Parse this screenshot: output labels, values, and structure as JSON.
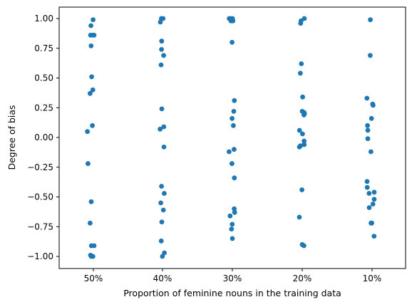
{
  "chart_data": {
    "type": "scatter",
    "xlabel": "Proportion of feminine nouns in the training data",
    "ylabel": "Degree of bias",
    "categories": [
      "50%",
      "40%",
      "30%",
      "20%",
      "10%"
    ],
    "yticks": [
      "1.00",
      "0.75",
      "0.50",
      "0.25",
      "0.00",
      "−0.25",
      "−0.50",
      "−0.75",
      "−1.00"
    ],
    "ylim": [
      -1.1,
      1.1
    ],
    "grid": false,
    "point_color": "#1f77b4",
    "points": [
      {
        "category": "50%",
        "jitter": -0.02,
        "y": 0.99
      },
      {
        "category": "50%",
        "jitter": -0.17,
        "y": 0.94
      },
      {
        "category": "50%",
        "jitter": -0.2,
        "y": 0.86
      },
      {
        "category": "50%",
        "jitter": -0.05,
        "y": 0.86
      },
      {
        "category": "50%",
        "jitter": 0.05,
        "y": 0.86
      },
      {
        "category": "50%",
        "jitter": -0.16,
        "y": 0.77
      },
      {
        "category": "50%",
        "jitter": -0.12,
        "y": 0.51
      },
      {
        "category": "50%",
        "jitter": -0.04,
        "y": 0.4
      },
      {
        "category": "50%",
        "jitter": -0.23,
        "y": 0.37
      },
      {
        "category": "50%",
        "jitter": -0.07,
        "y": 0.1
      },
      {
        "category": "50%",
        "jitter": -0.42,
        "y": 0.05
      },
      {
        "category": "50%",
        "jitter": -0.38,
        "y": -0.22
      },
      {
        "category": "50%",
        "jitter": -0.15,
        "y": -0.54
      },
      {
        "category": "50%",
        "jitter": -0.23,
        "y": -0.72
      },
      {
        "category": "50%",
        "jitter": -0.14,
        "y": -0.91
      },
      {
        "category": "50%",
        "jitter": 0.05,
        "y": -0.91
      },
      {
        "category": "50%",
        "jitter": -0.2,
        "y": -0.99
      },
      {
        "category": "50%",
        "jitter": -0.14,
        "y": -1.0
      },
      {
        "category": "50%",
        "jitter": -0.03,
        "y": -1.0
      },
      {
        "category": "40%",
        "jitter": 0.04,
        "y": 1.0
      },
      {
        "category": "40%",
        "jitter": -0.08,
        "y": 1.0
      },
      {
        "category": "40%",
        "jitter": -0.15,
        "y": 0.97
      },
      {
        "category": "40%",
        "jitter": -0.06,
        "y": 0.81
      },
      {
        "category": "40%",
        "jitter": -0.07,
        "y": 0.74
      },
      {
        "category": "40%",
        "jitter": 0.08,
        "y": 0.69
      },
      {
        "category": "40%",
        "jitter": -0.1,
        "y": 0.61
      },
      {
        "category": "40%",
        "jitter": -0.05,
        "y": 0.24
      },
      {
        "category": "40%",
        "jitter": 0.09,
        "y": 0.09
      },
      {
        "category": "40%",
        "jitter": -0.17,
        "y": 0.07
      },
      {
        "category": "40%",
        "jitter": 0.1,
        "y": -0.08
      },
      {
        "category": "40%",
        "jitter": -0.07,
        "y": -0.41
      },
      {
        "category": "40%",
        "jitter": 0.12,
        "y": -0.47
      },
      {
        "category": "40%",
        "jitter": -0.12,
        "y": -0.55
      },
      {
        "category": "40%",
        "jitter": 0.06,
        "y": -0.61
      },
      {
        "category": "40%",
        "jitter": -0.05,
        "y": -0.71
      },
      {
        "category": "40%",
        "jitter": -0.09,
        "y": -0.87
      },
      {
        "category": "40%",
        "jitter": 0.13,
        "y": -0.97
      },
      {
        "category": "40%",
        "jitter": -0.01,
        "y": -1.0
      },
      {
        "category": "30%",
        "jitter": -0.22,
        "y": 1.0
      },
      {
        "category": "30%",
        "jitter": -0.14,
        "y": 1.0
      },
      {
        "category": "30%",
        "jitter": 0.01,
        "y": 1.0
      },
      {
        "category": "30%",
        "jitter": -0.1,
        "y": 0.98
      },
      {
        "category": "30%",
        "jitter": 0.04,
        "y": 0.98
      },
      {
        "category": "30%",
        "jitter": -0.02,
        "y": 0.8
      },
      {
        "category": "30%",
        "jitter": 0.14,
        "y": 0.31
      },
      {
        "category": "30%",
        "jitter": 0.1,
        "y": 0.22
      },
      {
        "category": "30%",
        "jitter": -0.02,
        "y": 0.16
      },
      {
        "category": "30%",
        "jitter": 0.07,
        "y": 0.1
      },
      {
        "category": "30%",
        "jitter": -0.23,
        "y": -0.12
      },
      {
        "category": "30%",
        "jitter": 0.12,
        "y": -0.1
      },
      {
        "category": "30%",
        "jitter": -0.03,
        "y": -0.22
      },
      {
        "category": "30%",
        "jitter": 0.14,
        "y": -0.34
      },
      {
        "category": "30%",
        "jitter": 0.13,
        "y": -0.6
      },
      {
        "category": "30%",
        "jitter": 0.16,
        "y": -0.63
      },
      {
        "category": "30%",
        "jitter": -0.16,
        "y": -0.66
      },
      {
        "category": "30%",
        "jitter": -0.01,
        "y": -0.73
      },
      {
        "category": "30%",
        "jitter": -0.06,
        "y": -0.77
      },
      {
        "category": "30%",
        "jitter": 0.0,
        "y": -0.85
      },
      {
        "category": "20%",
        "jitter": 0.15,
        "y": 1.0
      },
      {
        "category": "20%",
        "jitter": -0.08,
        "y": 0.98
      },
      {
        "category": "20%",
        "jitter": -0.11,
        "y": 0.96
      },
      {
        "category": "20%",
        "jitter": -0.06,
        "y": 0.62
      },
      {
        "category": "20%",
        "jitter": -0.13,
        "y": 0.54
      },
      {
        "category": "20%",
        "jitter": 0.03,
        "y": 0.34
      },
      {
        "category": "20%",
        "jitter": 0.0,
        "y": 0.22
      },
      {
        "category": "20%",
        "jitter": 0.16,
        "y": 0.2
      },
      {
        "category": "20%",
        "jitter": 0.12,
        "y": 0.19
      },
      {
        "category": "20%",
        "jitter": 0.13,
        "y": 0.21
      },
      {
        "category": "20%",
        "jitter": -0.19,
        "y": 0.06
      },
      {
        "category": "20%",
        "jitter": 0.02,
        "y": 0.03
      },
      {
        "category": "20%",
        "jitter": 0.13,
        "y": -0.03
      },
      {
        "category": "20%",
        "jitter": 0.14,
        "y": -0.06
      },
      {
        "category": "20%",
        "jitter": -0.2,
        "y": -0.08
      },
      {
        "category": "20%",
        "jitter": -0.12,
        "y": -0.07
      },
      {
        "category": "20%",
        "jitter": -0.02,
        "y": -0.44
      },
      {
        "category": "20%",
        "jitter": -0.2,
        "y": -0.67
      },
      {
        "category": "20%",
        "jitter": 0.0,
        "y": -0.9
      },
      {
        "category": "20%",
        "jitter": 0.12,
        "y": -0.91
      },
      {
        "category": "10%",
        "jitter": -0.12,
        "y": 0.99
      },
      {
        "category": "10%",
        "jitter": -0.13,
        "y": 0.69
      },
      {
        "category": "10%",
        "jitter": -0.36,
        "y": 0.33
      },
      {
        "category": "10%",
        "jitter": 0.04,
        "y": 0.28
      },
      {
        "category": "10%",
        "jitter": 0.07,
        "y": 0.27
      },
      {
        "category": "10%",
        "jitter": -0.04,
        "y": 0.16
      },
      {
        "category": "10%",
        "jitter": -0.32,
        "y": 0.1
      },
      {
        "category": "10%",
        "jitter": -0.3,
        "y": 0.06
      },
      {
        "category": "10%",
        "jitter": -0.3,
        "y": -0.01
      },
      {
        "category": "10%",
        "jitter": -0.08,
        "y": -0.12
      },
      {
        "category": "10%",
        "jitter": -0.35,
        "y": -0.37
      },
      {
        "category": "10%",
        "jitter": -0.34,
        "y": -0.42
      },
      {
        "category": "10%",
        "jitter": -0.21,
        "y": -0.47
      },
      {
        "category": "10%",
        "jitter": 0.15,
        "y": -0.46
      },
      {
        "category": "10%",
        "jitter": 0.15,
        "y": -0.52
      },
      {
        "category": "10%",
        "jitter": 0.06,
        "y": -0.56
      },
      {
        "category": "10%",
        "jitter": -0.2,
        "y": -0.59
      },
      {
        "category": "10%",
        "jitter": -0.07,
        "y": -0.72
      },
      {
        "category": "10%",
        "jitter": -0.02,
        "y": -0.72
      },
      {
        "category": "10%",
        "jitter": 0.14,
        "y": -0.83
      }
    ]
  }
}
